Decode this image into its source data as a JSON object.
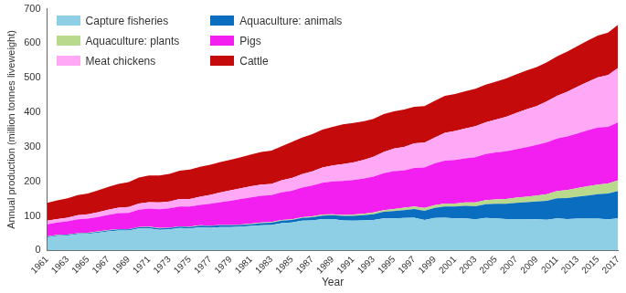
{
  "chart_data": {
    "type": "area",
    "stacked": true,
    "grid": false,
    "legend": "upper left",
    "x_label": "Year",
    "y_label": "Annual production (million tonnes liveweight)",
    "categories": [
      "1961",
      null,
      "1963",
      null,
      "1965",
      null,
      "1967",
      null,
      "1969",
      null,
      "1971",
      null,
      "1973",
      null,
      "1975",
      null,
      "1977",
      null,
      "1979",
      null,
      "1981",
      null,
      "1983",
      null,
      "1985",
      null,
      "1987",
      null,
      "1989",
      null,
      "1991",
      null,
      "1993",
      null,
      "1995",
      null,
      "1997",
      null,
      "1999",
      null,
      "2001",
      null,
      "2003",
      null,
      "2005",
      null,
      "2007",
      null,
      "2009",
      null,
      "2011",
      null,
      "2013",
      null,
      "2015",
      null,
      "2017"
    ],
    "ylim": [
      0,
      700
    ],
    "yticks": [
      0,
      100,
      200,
      300,
      400,
      500,
      600,
      700
    ],
    "series": [
      {
        "name": "Capture fisheries",
        "color": "#8ecfe6",
        "values": [
          38,
          42,
          43,
          47,
          48,
          51,
          55,
          58,
          58,
          64,
          64,
          60,
          61,
          65,
          64,
          67,
          66,
          68,
          68,
          69,
          71,
          73,
          74,
          79,
          81,
          86,
          87,
          91,
          91,
          87,
          86,
          87,
          88,
          93,
          93,
          94,
          95,
          88,
          94,
          95,
          93,
          93,
          90,
          94,
          93,
          91,
          91,
          91,
          90,
          89,
          93,
          91,
          92,
          92,
          92,
          90,
          93
        ]
      },
      {
        "name": "Aquaculture: animals",
        "color": "#0b6dbf",
        "values": [
          2,
          2,
          2,
          2,
          2,
          3,
          3,
          3,
          3,
          3,
          4,
          4,
          4,
          4,
          4,
          5,
          5,
          5,
          5,
          5,
          5,
          6,
          6,
          7,
          7,
          8,
          9,
          10,
          11,
          13,
          14,
          15,
          17,
          19,
          21,
          23,
          25,
          27,
          29,
          32,
          34,
          36,
          38,
          40,
          42,
          44,
          47,
          49,
          52,
          55,
          58,
          61,
          64,
          67,
          71,
          75,
          79
        ]
      },
      {
        "name": "Aquaculture: plants",
        "color": "#b9d98c",
        "values": [
          1,
          1,
          1,
          1,
          1,
          1,
          1,
          1,
          1,
          1,
          1,
          1,
          1,
          1,
          1,
          1,
          1,
          1,
          1,
          1,
          2,
          2,
          2,
          2,
          2,
          2,
          3,
          3,
          3,
          3,
          4,
          4,
          5,
          5,
          6,
          7,
          7,
          8,
          8,
          9,
          9,
          10,
          11,
          12,
          13,
          14,
          15,
          16,
          17,
          19,
          21,
          23,
          25,
          27,
          28,
          29,
          31
        ]
      },
      {
        "name": "Pigs",
        "color": "#f21ff0",
        "values": [
          35,
          36,
          38,
          40,
          41,
          42,
          44,
          46,
          47,
          50,
          52,
          54,
          56,
          57,
          58,
          59,
          63,
          66,
          70,
          74,
          76,
          77,
          78,
          80,
          83,
          86,
          89,
          92,
          95,
          98,
          100,
          102,
          104,
          107,
          110,
          108,
          112,
          117,
          121,
          124,
          126,
          128,
          131,
          133,
          136,
          138,
          140,
          143,
          147,
          150,
          152,
          155,
          158,
          162,
          165,
          164,
          168
        ]
      },
      {
        "name": "Meat chickens",
        "color": "#ffa8f6",
        "values": [
          10,
          10,
          11,
          12,
          13,
          14,
          15,
          16,
          17,
          18,
          19,
          20,
          20,
          22,
          22,
          24,
          26,
          28,
          30,
          31,
          32,
          33,
          33,
          35,
          37,
          39,
          41,
          44,
          46,
          49,
          51,
          54,
          57,
          61,
          65,
          68,
          71,
          72,
          75,
          81,
          84,
          86,
          90,
          92,
          95,
          100,
          105,
          110,
          112,
          119,
          124,
          130,
          135,
          140,
          145,
          150,
          158
        ]
      },
      {
        "name": "Cattle",
        "color": "#c40a0a",
        "values": [
          52,
          54,
          56,
          58,
          60,
          63,
          66,
          69,
          72,
          75,
          77,
          78,
          80,
          82,
          85,
          86,
          87,
          88,
          89,
          90,
          92,
          94,
          96,
          99,
          104,
          106,
          108,
          110,
          112,
          115,
          114,
          112,
          110,
          110,
          108,
          108,
          106,
          106,
          106,
          107,
          107,
          108,
          108,
          109,
          110,
          111,
          112,
          112,
          113,
          113,
          114,
          116,
          118,
          120,
          121,
          123,
          125
        ]
      }
    ]
  }
}
